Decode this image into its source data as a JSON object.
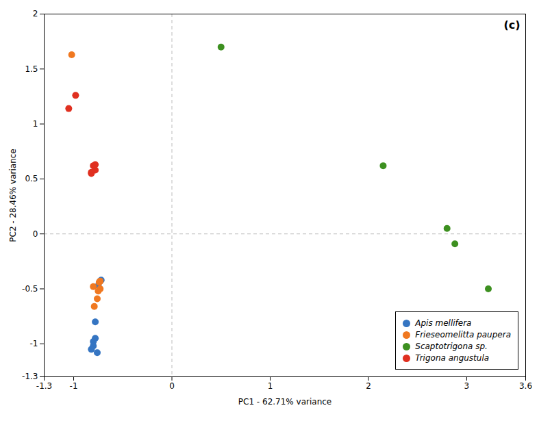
{
  "chart_data": {
    "type": "scatter",
    "title": "(c)",
    "xlabel": "PC1 - 62.71% variance",
    "ylabel": "PC2 - 28.46% variance",
    "xlim": [
      -1.3,
      3.6
    ],
    "ylim": [
      -1.3,
      2.0
    ],
    "xticks": [
      -1.3,
      -1,
      0,
      1,
      2,
      3,
      3.6
    ],
    "yticks": [
      -1.3,
      -1,
      -0.5,
      0,
      0.5,
      1,
      1.5,
      2
    ],
    "hline": 0,
    "vline": 0,
    "legend": "lower right",
    "grid": false,
    "series": [
      {
        "name": "Apis mellifera",
        "color": "#3575C2",
        "x": [
          -0.72,
          -0.73,
          -0.75,
          -0.78,
          -0.78,
          -0.8,
          -0.8,
          -0.82,
          -0.76
        ],
        "y": [
          -0.42,
          -0.43,
          -0.47,
          -0.8,
          -0.95,
          -0.98,
          -1.02,
          -1.05,
          -1.08
        ]
      },
      {
        "name": "Frieseomelitta paupera",
        "color": "#F07820",
        "x": [
          -1.02,
          -0.73,
          -0.74,
          -0.8,
          -0.73,
          -0.75,
          -0.76,
          -0.79
        ],
        "y": [
          1.63,
          -0.43,
          -0.44,
          -0.48,
          -0.5,
          -0.52,
          -0.59,
          -0.66
        ]
      },
      {
        "name": "Scaptotrigona sp.",
        "color": "#3D9020",
        "x": [
          0.5,
          2.15,
          2.8,
          2.88,
          3.22
        ],
        "y": [
          1.7,
          0.62,
          0.05,
          -0.09,
          -0.5
        ]
      },
      {
        "name": "Trigona angustula",
        "color": "#E03020",
        "x": [
          -1.05,
          -0.98,
          -0.82,
          -0.82,
          -0.78,
          -0.8,
          -0.78
        ],
        "y": [
          1.14,
          1.26,
          0.55,
          0.56,
          0.58,
          0.62,
          0.63
        ]
      }
    ]
  }
}
